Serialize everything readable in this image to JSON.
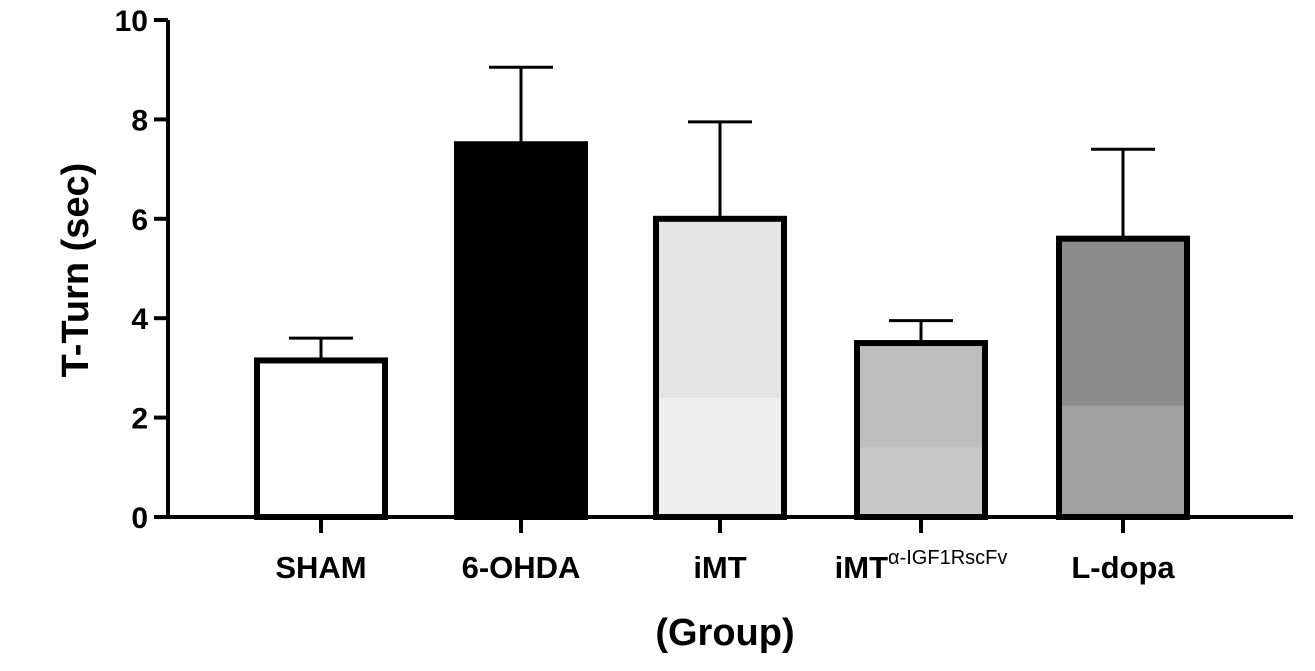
{
  "chart_data": {
    "type": "bar",
    "title": "",
    "ylabel": "T-Turn (sec)",
    "xlabel": "(Group)",
    "ylim": [
      0,
      10
    ],
    "yticks": [
      0,
      2,
      4,
      6,
      8,
      10
    ],
    "grid": false,
    "legend": "none",
    "categories": [
      {
        "label": "SHAM",
        "sup": ""
      },
      {
        "label": "6-OHDA",
        "sup": ""
      },
      {
        "label": "iMT",
        "sup": ""
      },
      {
        "label": "iMT",
        "sup": "α-IGF1RscFv"
      },
      {
        "label": "L-dopa",
        "sup": ""
      }
    ],
    "values": [
      3.15,
      7.5,
      6.0,
      3.5,
      5.6
    ],
    "error_upper": [
      0.45,
      1.55,
      1.95,
      0.45,
      1.8
    ],
    "fills": [
      "#ffffff",
      "#000000",
      "#e4e4e4",
      "#bdbdbd",
      "#8c8c8c"
    ],
    "fill_bottom": [
      "#ffffff",
      "#000000",
      "#efefef",
      "#c8c8c8",
      "#a0a0a0"
    ]
  }
}
